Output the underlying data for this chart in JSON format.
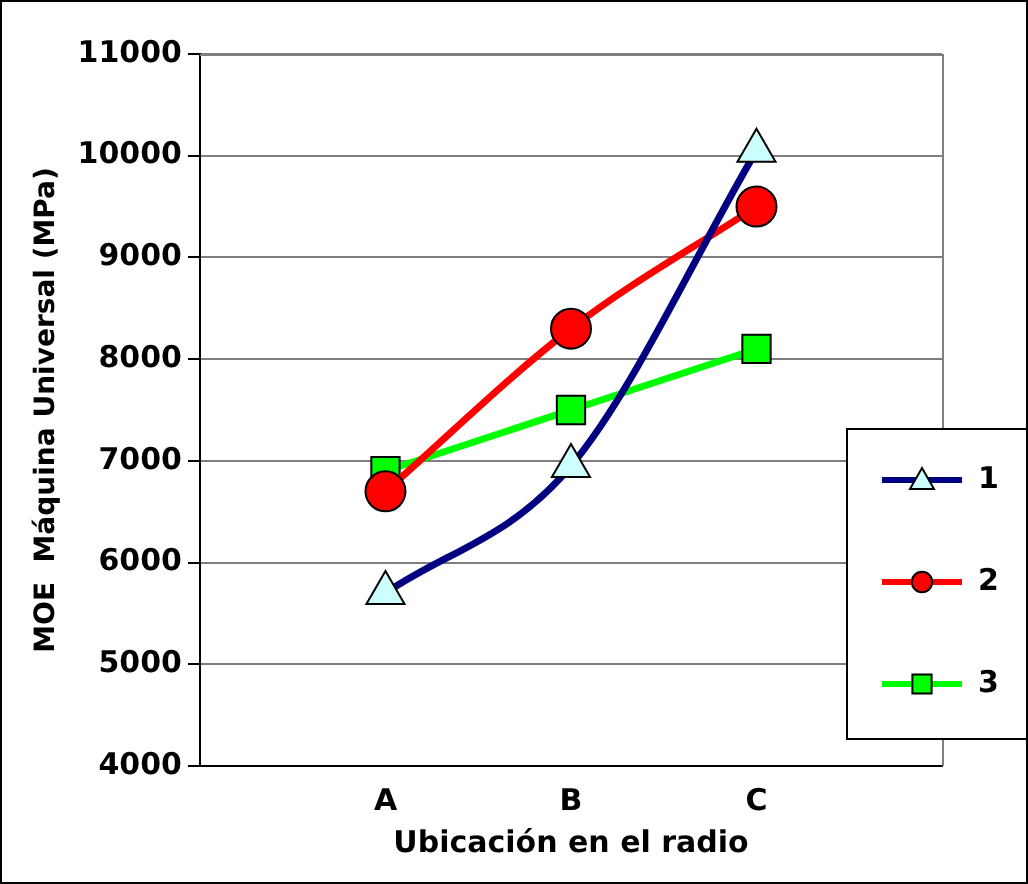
{
  "chart_data": {
    "type": "line",
    "xlabel": "Ubicación en el radio",
    "ylabel": "MOE  Máquina Universal (MPa)",
    "categories": [
      null,
      "A",
      "B",
      "C",
      null
    ],
    "series": [
      {
        "name": "1",
        "color": "#000080",
        "marker": "triangle",
        "values": [
          null,
          5700,
          6950,
          10050,
          null
        ]
      },
      {
        "name": "2",
        "color": "#ff0000",
        "marker": "circle",
        "values": [
          null,
          6700,
          8300,
          9500,
          null
        ]
      },
      {
        "name": "3",
        "color": "#00ff00",
        "marker": "square",
        "values": [
          null,
          6900,
          7500,
          8100,
          null
        ]
      }
    ],
    "ylim": [
      4000,
      11000
    ],
    "yticks": [
      4000,
      5000,
      6000,
      7000,
      8000,
      9000,
      10000,
      11000
    ],
    "grid": "y",
    "legend": "right",
    "line_style": "solid"
  }
}
